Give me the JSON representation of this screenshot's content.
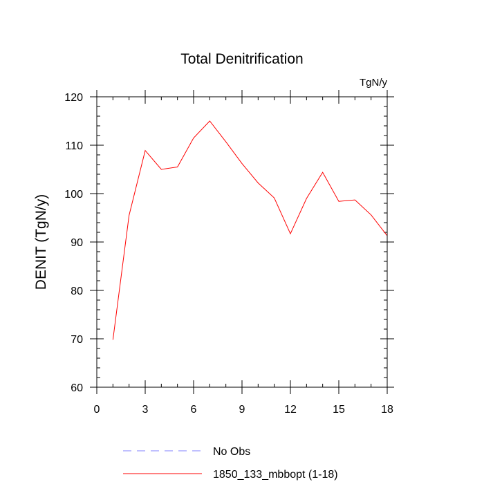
{
  "chart_data": {
    "type": "line",
    "title": "Total Denitrification",
    "units": "TgN/y",
    "xlabel": "",
    "ylabel": "DENIT  (TgN/y)",
    "xlim": [
      0,
      18
    ],
    "ylim": [
      60,
      120
    ],
    "x_ticks": [
      0,
      3,
      6,
      9,
      12,
      15,
      18
    ],
    "x_tick_labels": [
      "0",
      "3",
      "6",
      "9",
      "12",
      "15",
      "18"
    ],
    "y_ticks": [
      60,
      70,
      80,
      90,
      100,
      110,
      120
    ],
    "y_tick_labels": [
      "60",
      "70",
      "80",
      "90",
      "100",
      "110",
      "120"
    ],
    "grid": false,
    "legend_position": "bottom",
    "series": [
      {
        "name": "No Obs",
        "color": "#8080ff",
        "style": "dashed",
        "x": [],
        "values": []
      },
      {
        "name": "1850_133_mbbopt (1-18)",
        "color": "#ff0000",
        "style": "solid",
        "x": [
          1,
          2,
          3,
          4,
          5,
          6,
          7,
          8,
          9,
          10,
          11,
          12,
          13,
          14,
          15,
          16,
          17,
          18
        ],
        "values": [
          69.8,
          95.5,
          108.9,
          105.0,
          105.5,
          111.5,
          115.0,
          110.7,
          106.2,
          102.2,
          99.1,
          91.7,
          99.0,
          104.4,
          98.4,
          98.7,
          95.6,
          91.3
        ]
      }
    ]
  }
}
